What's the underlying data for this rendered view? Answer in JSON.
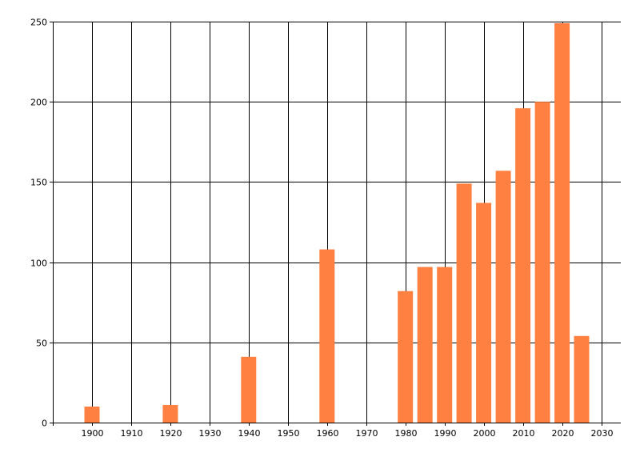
{
  "chart_data": {
    "type": "bar",
    "x": [
      1900,
      1920,
      1940,
      1960,
      1980,
      1985,
      1990,
      1995,
      2000,
      2005,
      2010,
      2015,
      2020,
      2025
    ],
    "values": [
      10,
      11,
      41,
      108,
      82,
      97,
      97,
      149,
      137,
      157,
      196,
      200,
      249,
      54
    ],
    "xlim": [
      1890,
      2035
    ],
    "ylim": [
      0,
      250
    ],
    "x_ticks": [
      "1900",
      "1910",
      "1920",
      "1930",
      "1940",
      "1950",
      "1960",
      "1970",
      "1980",
      "1990",
      "2000",
      "2010",
      "2020",
      "2030"
    ],
    "y_ticks": [
      "0",
      "50",
      "100",
      "150",
      "200",
      "250"
    ],
    "grid": true,
    "bar_color": "#ff8040",
    "title": "",
    "xlabel": "",
    "ylabel": ""
  }
}
